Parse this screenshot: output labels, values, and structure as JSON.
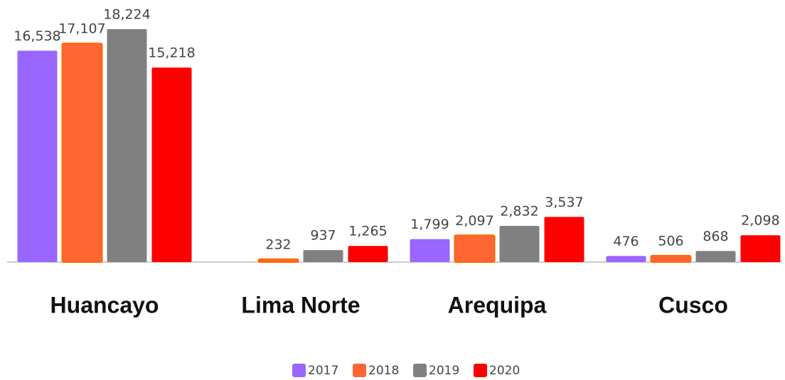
{
  "chart_data": {
    "type": "bar",
    "categories": [
      "Huancayo",
      "Lima Norte",
      "Arequipa",
      "Cusco"
    ],
    "series": [
      {
        "name": "2017",
        "color": "#9966ff",
        "values": [
          16538,
          null,
          1799,
          476
        ],
        "value_labels": [
          "16,538",
          null,
          "1,799",
          "476"
        ]
      },
      {
        "name": "2018",
        "color": "#ff6633",
        "values": [
          17107,
          232,
          2097,
          506
        ],
        "value_labels": [
          "17,107",
          "232",
          "2,097",
          "506"
        ]
      },
      {
        "name": "2019",
        "color": "#808080",
        "values": [
          18224,
          937,
          2832,
          868
        ],
        "value_labels": [
          "18,224",
          "937",
          "2,832",
          "868"
        ]
      },
      {
        "name": "2020",
        "color": "#ff0000",
        "values": [
          15218,
          1265,
          3537,
          2098
        ],
        "value_labels": [
          "15,218",
          "1,265",
          "3,537",
          "2,098"
        ]
      }
    ]
  }
}
